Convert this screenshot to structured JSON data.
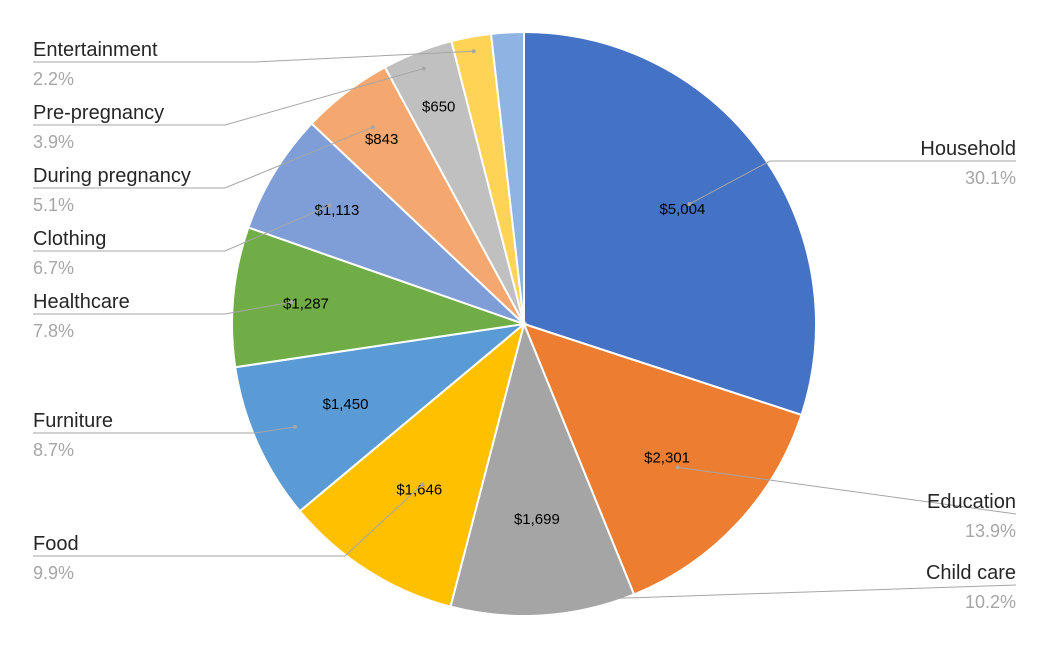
{
  "chart_data": {
    "type": "pie",
    "title": "",
    "slices": [
      {
        "label": "Household",
        "value": 5004,
        "value_label": "$5,004",
        "percent": "30.1%",
        "color": "#4472C4"
      },
      {
        "label": "Education",
        "value": 2301,
        "value_label": "$2,301",
        "percent": "13.9%",
        "color": "#ED7D31"
      },
      {
        "label": "Child care",
        "value": 1699,
        "value_label": "$1,699",
        "percent": "10.2%",
        "color": "#A5A5A5"
      },
      {
        "label": "Food",
        "value": 1646,
        "value_label": "$1,646",
        "percent": "9.9%",
        "color": "#FFC000"
      },
      {
        "label": "Furniture",
        "value": 1450,
        "value_label": "$1,450",
        "percent": "8.7%",
        "color": "#5B9BD5"
      },
      {
        "label": "Healthcare",
        "value": 1287,
        "value_label": "$1,287",
        "percent": "7.8%",
        "color": "#70AD47"
      },
      {
        "label": "Clothing",
        "value": 1113,
        "value_label": "$1,113",
        "percent": "6.7%",
        "color": "#7F9ED8"
      },
      {
        "label": "During pregnancy",
        "value": 843,
        "value_label": "$843",
        "percent": "5.1%",
        "color": "#F4A76F"
      },
      {
        "label": "Pre-pregnancy",
        "value": 650,
        "value_label": "$650",
        "percent": "3.9%",
        "color": "#C0C0C0"
      },
      {
        "label": "Entertainment",
        "value": 366,
        "value_label": "",
        "percent": "2.2%",
        "color": "#FFD355"
      },
      {
        "label": "",
        "value": 300,
        "value_label": "",
        "percent": "",
        "color": "#8FB4E3"
      }
    ],
    "start_angle": "top",
    "direction": "clockwise",
    "legend": "none"
  }
}
